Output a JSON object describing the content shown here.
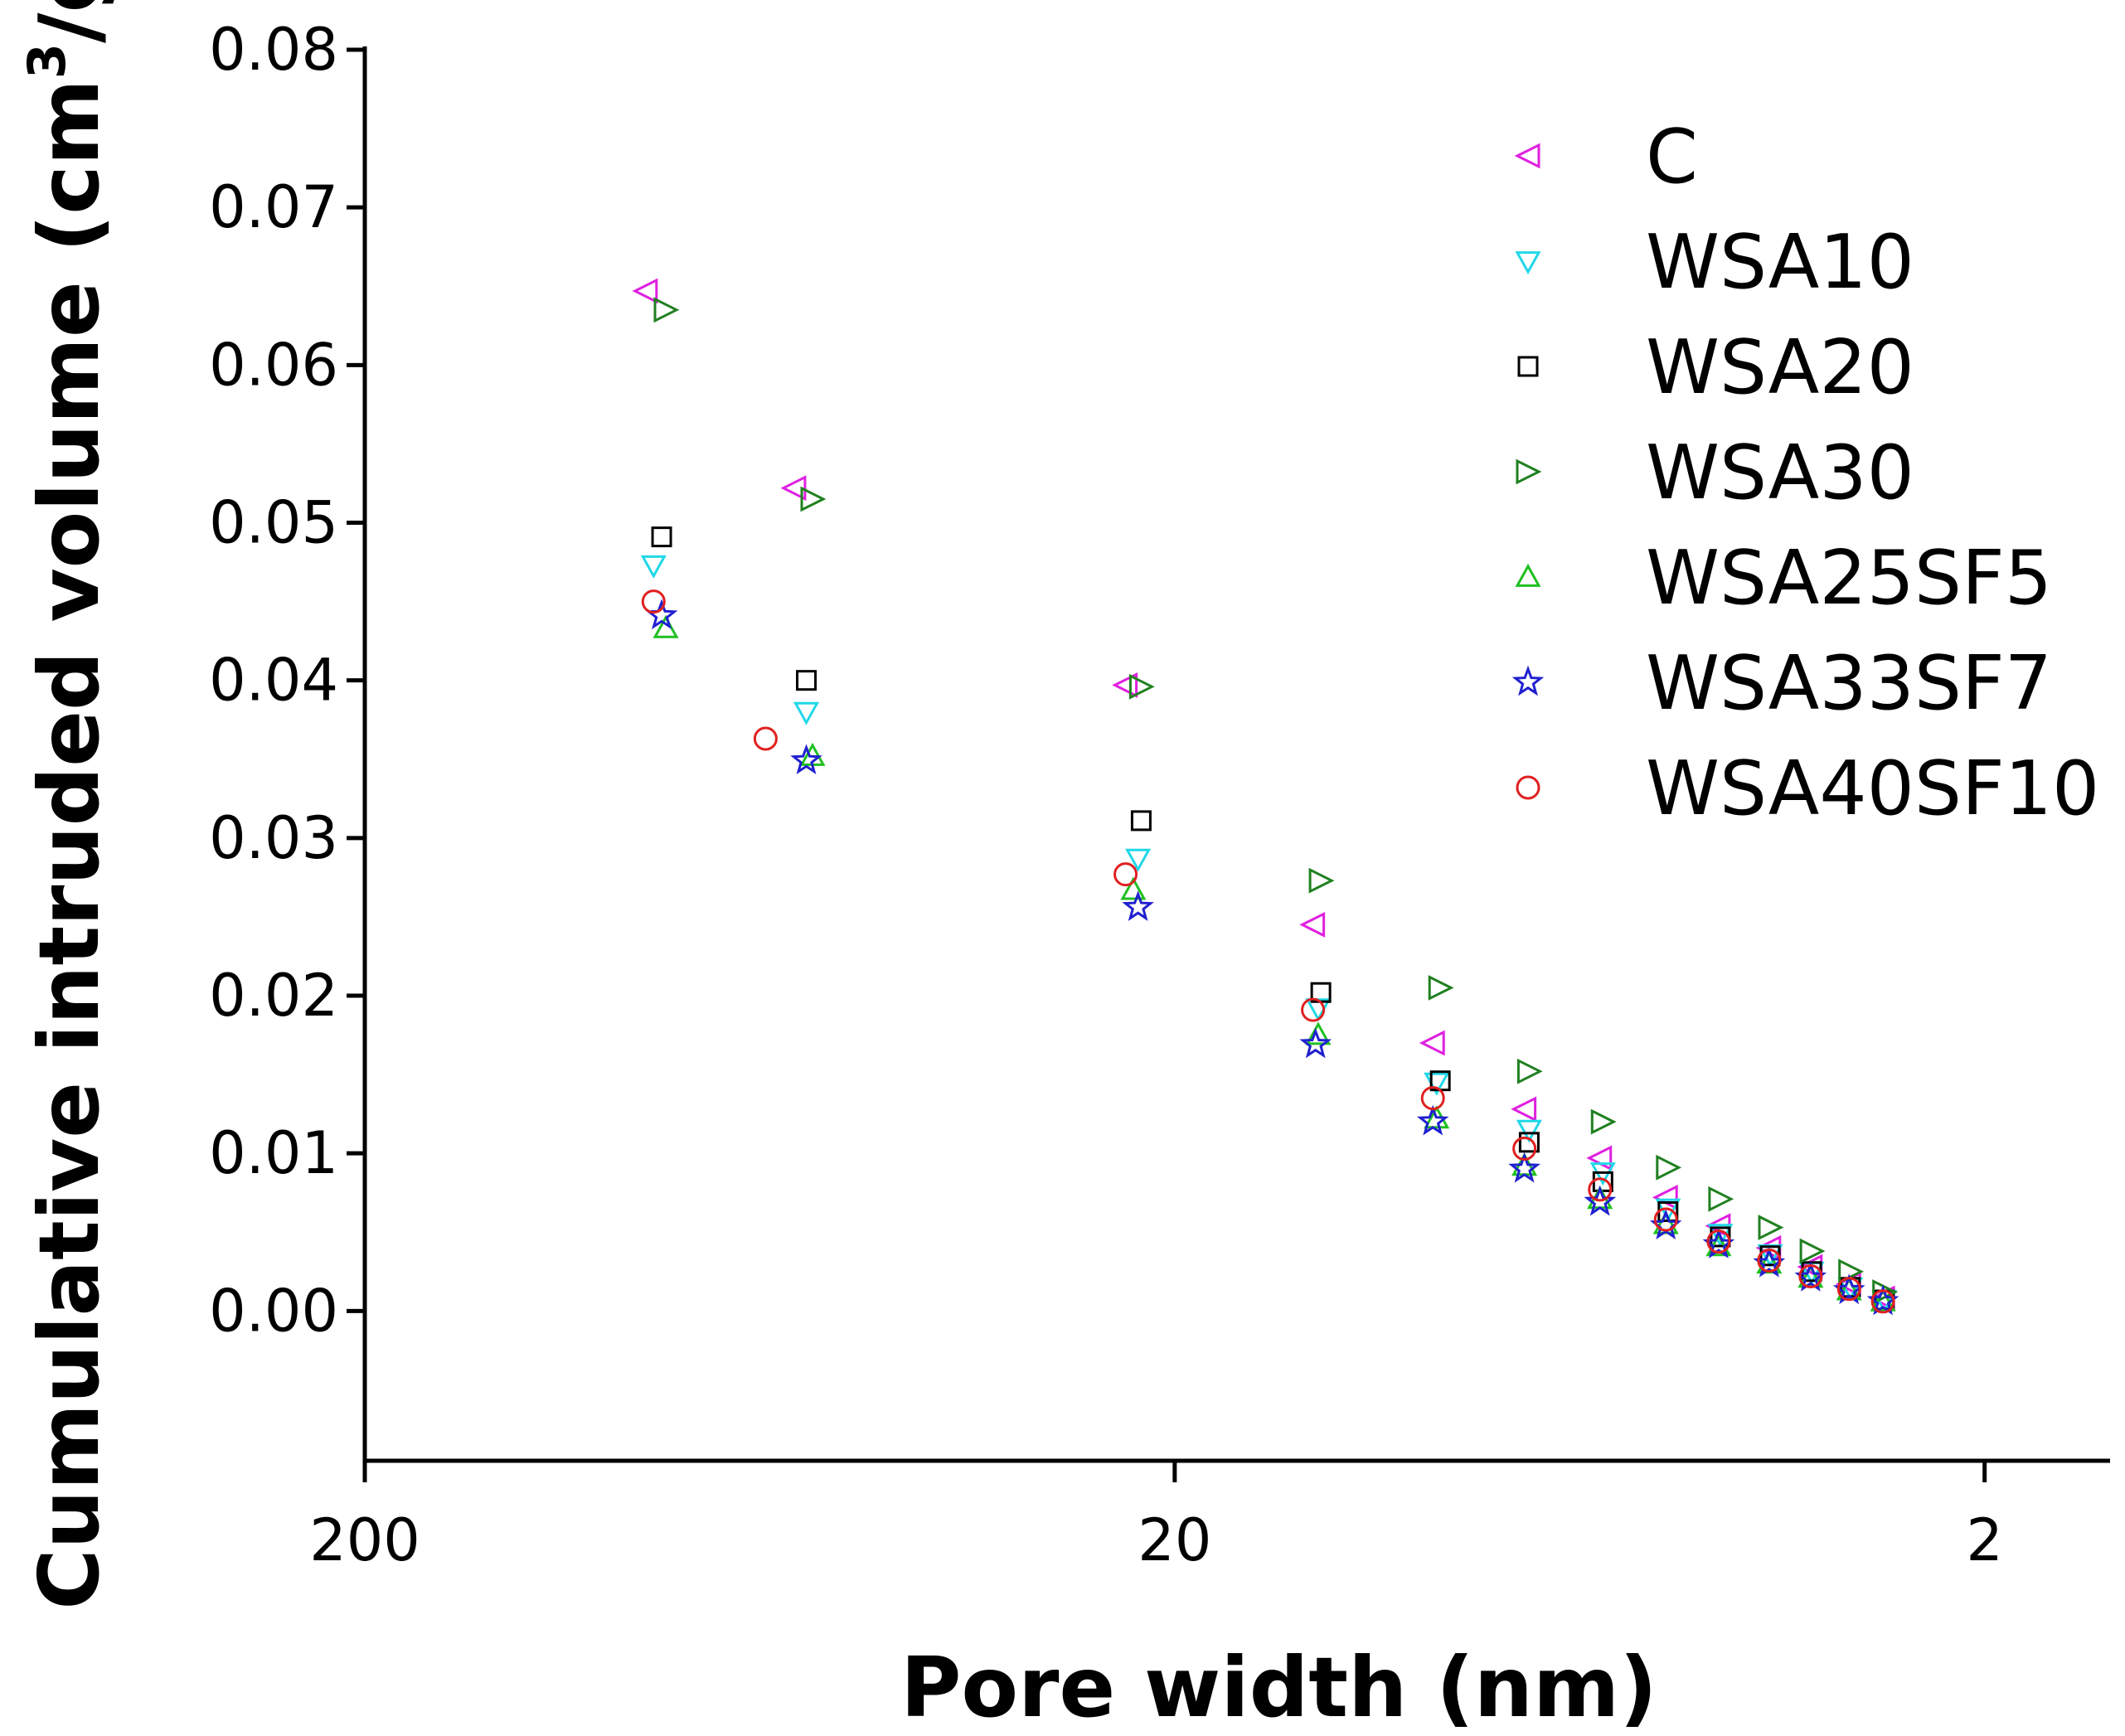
{
  "chart_data": {
    "type": "scatter",
    "title": "",
    "xlabel": "Pore width (nm)",
    "ylabel_main": "Cumulative intruded volume (cm",
    "ylabel_sup": "3",
    "ylabel_end": "/g)",
    "xscale": "log",
    "xreversed": true,
    "xlim": [
      200,
      1.4
    ],
    "ylim": [
      -0.0095,
      0.08
    ],
    "xticks": [
      200,
      20,
      2
    ],
    "xtick_labels": [
      "200",
      "20",
      "2"
    ],
    "yticks": [
      0.0,
      0.01,
      0.02,
      0.03,
      0.04,
      0.05,
      0.06,
      0.07,
      0.08
    ],
    "ytick_labels": [
      "0.00",
      "0.01",
      "0.02",
      "0.03",
      "0.04",
      "0.05",
      "0.06",
      "0.07",
      "0.08"
    ],
    "legend_position": "top-right",
    "series": [
      {
        "name": "C",
        "marker": "triangle-left",
        "color": "#e020e0",
        "x": [
          90,
          59,
          23,
          13.5,
          9.6,
          7.4,
          5.97,
          4.95,
          4.26,
          3.69,
          3.28,
          2.94,
          2.67
        ],
        "y": [
          0.0647,
          0.0522,
          0.0397,
          0.0245,
          0.017,
          0.0128,
          0.0097,
          0.0072,
          0.0054,
          0.004,
          0.0028,
          0.0017,
          0.0008
        ]
      },
      {
        "name": "WSA10",
        "marker": "triangle-down",
        "color": "#20d8e8",
        "x": [
          88,
          57,
          22.2,
          13.3,
          9.5,
          7.3,
          5.92,
          4.92,
          4.24,
          3.68,
          3.27,
          2.93,
          2.66
        ],
        "y": [
          0.0473,
          0.038,
          0.0287,
          0.0192,
          0.0145,
          0.0115,
          0.0088,
          0.0065,
          0.0049,
          0.0036,
          0.0025,
          0.0015,
          0.0007
        ]
      },
      {
        "name": "WSA20",
        "marker": "square",
        "color": "#000000",
        "x": [
          86,
          57,
          22,
          13.2,
          9.4,
          7.3,
          5.92,
          4.92,
          4.24,
          3.68,
          3.27,
          2.93,
          2.66
        ],
        "y": [
          0.0491,
          0.04,
          0.0311,
          0.0202,
          0.0146,
          0.0107,
          0.0082,
          0.0063,
          0.0047,
          0.0035,
          0.0025,
          0.0015,
          0.0007
        ]
      },
      {
        "name": "WSA30",
        "marker": "triangle-right",
        "color": "#208020",
        "x": [
          85,
          56,
          22,
          13.2,
          9.4,
          7.3,
          5.92,
          4.92,
          4.24,
          3.68,
          3.27,
          2.93,
          2.66
        ],
        "y": [
          0.0635,
          0.0515,
          0.0396,
          0.0273,
          0.0205,
          0.0152,
          0.012,
          0.0091,
          0.0071,
          0.0053,
          0.0038,
          0.0025,
          0.0012
        ]
      },
      {
        "name": "WSA25SF5",
        "marker": "triangle-up",
        "color": "#20c020",
        "x": [
          85,
          56,
          22.5,
          13.3,
          9.5,
          7.4,
          5.97,
          4.95,
          4.26,
          3.69,
          3.28,
          2.94,
          2.67
        ],
        "y": [
          0.0433,
          0.0352,
          0.0267,
          0.0175,
          0.0122,
          0.0092,
          0.0071,
          0.0055,
          0.0041,
          0.003,
          0.0021,
          0.0013,
          0.0006
        ]
      },
      {
        "name": "WSA33SF7",
        "marker": "star",
        "color": "#2020d0",
        "x": [
          86,
          57,
          22.2,
          13.4,
          9.6,
          7.4,
          5.97,
          4.95,
          4.26,
          3.69,
          3.28,
          2.94,
          2.67
        ],
        "y": [
          0.0441,
          0.0349,
          0.0256,
          0.0169,
          0.012,
          0.009,
          0.0069,
          0.0054,
          0.0042,
          0.003,
          0.0021,
          0.0013,
          0.0006
        ]
      },
      {
        "name": "WSA40SF10",
        "marker": "circle",
        "color": "#e02020",
        "x": [
          88,
          64,
          23,
          13.5,
          9.6,
          7.4,
          5.97,
          4.95,
          4.26,
          3.69,
          3.28,
          2.94,
          2.67
        ],
        "y": [
          0.045,
          0.0363,
          0.0277,
          0.0191,
          0.0135,
          0.0103,
          0.0077,
          0.0058,
          0.0044,
          0.0032,
          0.0022,
          0.0014,
          0.0006
        ]
      }
    ]
  }
}
